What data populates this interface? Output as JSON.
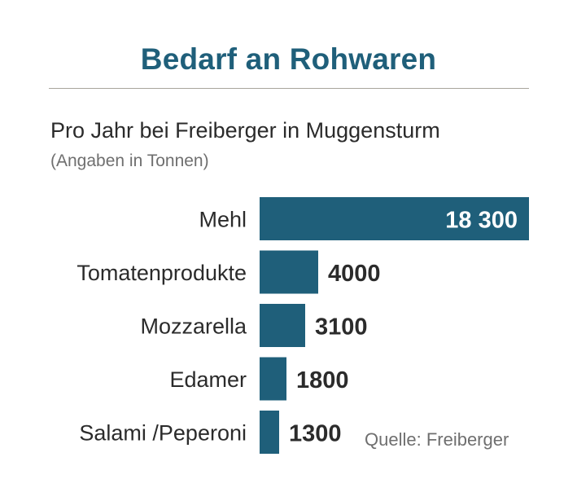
{
  "title": "Bedarf an Rohwaren",
  "subtitle": "Pro Jahr bei Freiberger in Muggensturm",
  "unit_note": "(Angaben in Tonnen)",
  "source": "Quelle: Freiberger",
  "colors": {
    "bar": "#1f5f7a",
    "title": "#1f5f7a",
    "text": "#2b2b2b",
    "muted": "#6f6f6f",
    "rule": "#a8a49c"
  },
  "chart_data": {
    "type": "bar",
    "orientation": "horizontal",
    "categories": [
      "Mehl",
      "Tomatenprodukte",
      "Mozzarella",
      "Edamer",
      "Salami /Peperoni"
    ],
    "values": [
      18300,
      4000,
      3100,
      1800,
      1300
    ],
    "value_labels": [
      "18 300",
      "4000",
      "3100",
      "1800",
      "1300"
    ],
    "title": "Bedarf an Rohwaren",
    "xlabel": "",
    "ylabel": "",
    "grid": false,
    "legend": "none"
  }
}
